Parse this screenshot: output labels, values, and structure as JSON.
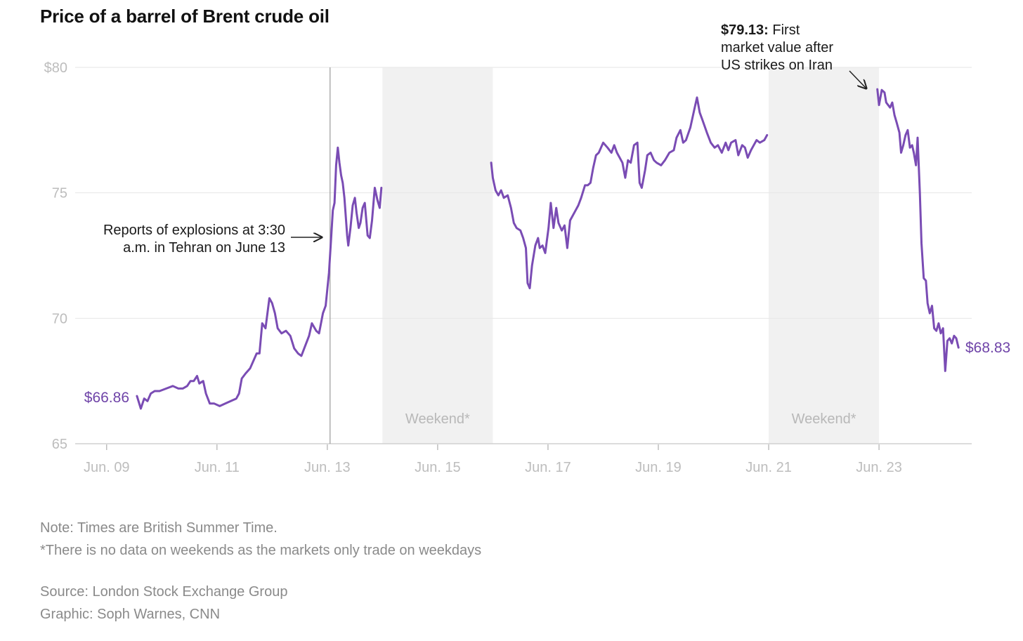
{
  "title": "Price of a barrel of Brent crude oil",
  "chart_data": {
    "type": "line",
    "title": "Price of a barrel of Brent crude oil",
    "xlabel": "",
    "ylabel": "",
    "ylim": [
      65,
      80
    ],
    "yticks": [
      "$80",
      "75",
      "70",
      "65"
    ],
    "ytick_values": [
      80,
      75,
      70,
      65
    ],
    "xticks": [
      "Jun. 09",
      "Jun. 11",
      "Jun. 13",
      "Jun. 15",
      "Jun. 17",
      "Jun. 19",
      "Jun. 21",
      "Jun. 23"
    ],
    "xtick_values": [
      9,
      11,
      13,
      15,
      17,
      19,
      21,
      23
    ],
    "xlim": [
      8.43,
      24.68
    ],
    "grid": true,
    "line_color": "#7a4cb4",
    "weekend_color": "#f1f1f1",
    "weekends": [
      {
        "from": 14.0,
        "to": 16.0,
        "label": "Weekend*"
      },
      {
        "from": 21.0,
        "to": 23.0,
        "label": "Weekend*"
      }
    ],
    "event_marker": {
      "x": 13.05
    },
    "series": [
      {
        "segments": [
          [
            [
              9.55,
              66.9
            ],
            [
              9.62,
              66.4
            ],
            [
              9.68,
              66.8
            ],
            [
              9.74,
              66.7
            ],
            [
              9.8,
              67.0
            ],
            [
              9.87,
              67.1
            ],
            [
              9.96,
              67.1
            ],
            [
              10.08,
              67.2
            ],
            [
              10.2,
              67.3
            ],
            [
              10.3,
              67.2
            ],
            [
              10.38,
              67.2
            ],
            [
              10.46,
              67.3
            ],
            [
              10.52,
              67.5
            ],
            [
              10.58,
              67.5
            ],
            [
              10.64,
              67.7
            ],
            [
              10.68,
              67.4
            ],
            [
              10.75,
              67.5
            ],
            [
              10.8,
              67.0
            ],
            [
              10.87,
              66.6
            ],
            [
              10.95,
              66.6
            ],
            [
              11.05,
              66.5
            ],
            [
              11.15,
              66.6
            ],
            [
              11.25,
              66.7
            ],
            [
              11.35,
              66.8
            ],
            [
              11.4,
              67.0
            ],
            [
              11.45,
              67.6
            ],
            [
              11.52,
              67.8
            ],
            [
              11.6,
              68.0
            ],
            [
              11.66,
              68.3
            ],
            [
              11.72,
              68.6
            ],
            [
              11.77,
              68.6
            ],
            [
              11.82,
              69.8
            ],
            [
              11.88,
              69.6
            ],
            [
              11.95,
              70.8
            ],
            [
              12.0,
              70.6
            ],
            [
              12.05,
              70.2
            ],
            [
              12.1,
              69.6
            ],
            [
              12.17,
              69.4
            ],
            [
              12.25,
              69.5
            ],
            [
              12.33,
              69.3
            ],
            [
              12.4,
              68.8
            ],
            [
              12.47,
              68.6
            ],
            [
              12.53,
              68.5
            ],
            [
              12.6,
              68.9
            ],
            [
              12.67,
              69.3
            ],
            [
              12.72,
              69.8
            ],
            [
              12.8,
              69.5
            ],
            [
              12.85,
              69.4
            ],
            [
              12.92,
              70.2
            ],
            [
              12.97,
              70.5
            ],
            [
              13.03,
              71.8
            ],
            [
              13.07,
              73.2
            ],
            [
              13.1,
              74.3
            ],
            [
              13.13,
              74.6
            ],
            [
              13.16,
              76.1
            ],
            [
              13.19,
              76.8
            ],
            [
              13.22,
              76.2
            ],
            [
              13.25,
              75.7
            ],
            [
              13.28,
              75.4
            ],
            [
              13.31,
              74.8
            ],
            [
              13.36,
              73.3
            ],
            [
              13.38,
              72.9
            ],
            [
              13.42,
              73.6
            ],
            [
              13.46,
              74.5
            ],
            [
              13.5,
              74.8
            ],
            [
              13.53,
              74.2
            ],
            [
              13.57,
              73.6
            ],
            [
              13.6,
              73.8
            ],
            [
              13.64,
              74.4
            ],
            [
              13.68,
              74.6
            ],
            [
              13.73,
              73.3
            ],
            [
              13.77,
              73.2
            ],
            [
              13.81,
              73.9
            ],
            [
              13.86,
              75.2
            ],
            [
              13.91,
              74.7
            ],
            [
              13.95,
              74.4
            ],
            [
              13.98,
              75.2
            ]
          ],
          [
            [
              15.97,
              76.2
            ],
            [
              16.0,
              75.6
            ],
            [
              16.05,
              75.1
            ],
            [
              16.1,
              74.9
            ],
            [
              16.15,
              75.1
            ],
            [
              16.2,
              74.8
            ],
            [
              16.27,
              74.9
            ],
            [
              16.33,
              74.4
            ],
            [
              16.38,
              73.8
            ],
            [
              16.43,
              73.6
            ],
            [
              16.5,
              73.5
            ],
            [
              16.55,
              73.2
            ],
            [
              16.6,
              72.8
            ],
            [
              16.63,
              71.4
            ],
            [
              16.67,
              71.2
            ],
            [
              16.71,
              72.1
            ],
            [
              16.77,
              72.9
            ],
            [
              16.82,
              73.2
            ],
            [
              16.85,
              72.8
            ],
            [
              16.9,
              72.9
            ],
            [
              16.95,
              72.6
            ],
            [
              17.01,
              73.6
            ],
            [
              17.05,
              74.6
            ],
            [
              17.1,
              73.6
            ],
            [
              17.15,
              74.4
            ],
            [
              17.19,
              73.8
            ],
            [
              17.25,
              73.5
            ],
            [
              17.3,
              73.7
            ],
            [
              17.35,
              72.8
            ],
            [
              17.4,
              73.9
            ],
            [
              17.5,
              74.3
            ],
            [
              17.55,
              74.5
            ],
            [
              17.6,
              74.8
            ],
            [
              17.67,
              75.3
            ],
            [
              17.72,
              75.3
            ],
            [
              17.77,
              75.4
            ],
            [
              17.82,
              76.0
            ],
            [
              17.87,
              76.5
            ],
            [
              17.92,
              76.6
            ],
            [
              18.0,
              77.0
            ],
            [
              18.08,
              76.8
            ],
            [
              18.15,
              76.6
            ],
            [
              18.2,
              76.9
            ],
            [
              18.25,
              76.6
            ],
            [
              18.3,
              76.4
            ],
            [
              18.35,
              76.2
            ],
            [
              18.4,
              75.6
            ],
            [
              18.45,
              76.3
            ],
            [
              18.5,
              76.2
            ],
            [
              18.56,
              76.9
            ],
            [
              18.62,
              77.0
            ],
            [
              18.66,
              75.4
            ],
            [
              18.7,
              75.2
            ],
            [
              18.76,
              75.9
            ],
            [
              18.8,
              76.5
            ],
            [
              18.86,
              76.6
            ],
            [
              18.92,
              76.3
            ],
            [
              18.97,
              76.2
            ],
            [
              19.05,
              76.1
            ],
            [
              19.12,
              76.3
            ],
            [
              19.2,
              76.6
            ],
            [
              19.28,
              76.7
            ],
            [
              19.33,
              77.2
            ],
            [
              19.4,
              77.5
            ],
            [
              19.45,
              77.0
            ],
            [
              19.5,
              77.1
            ],
            [
              19.58,
              77.6
            ],
            [
              19.65,
              78.3
            ],
            [
              19.7,
              78.8
            ],
            [
              19.75,
              78.2
            ],
            [
              19.8,
              77.9
            ],
            [
              19.88,
              77.4
            ],
            [
              19.95,
              77.0
            ],
            [
              20.02,
              76.8
            ],
            [
              20.08,
              76.9
            ],
            [
              20.15,
              76.6
            ],
            [
              20.22,
              77.0
            ],
            [
              20.27,
              76.7
            ],
            [
              20.32,
              77.0
            ],
            [
              20.4,
              77.1
            ],
            [
              20.45,
              76.5
            ],
            [
              20.52,
              76.9
            ],
            [
              20.57,
              76.8
            ],
            [
              20.62,
              76.4
            ],
            [
              20.68,
              76.7
            ],
            [
              20.73,
              76.9
            ],
            [
              20.78,
              77.1
            ],
            [
              20.84,
              77.0
            ],
            [
              20.92,
              77.1
            ],
            [
              20.97,
              77.3
            ]
          ],
          [
            [
              22.97,
              79.13
            ],
            [
              23.0,
              78.5
            ],
            [
              23.05,
              79.1
            ],
            [
              23.1,
              79.0
            ],
            [
              23.13,
              78.6
            ],
            [
              23.2,
              78.4
            ],
            [
              23.24,
              78.6
            ],
            [
              23.28,
              78.1
            ],
            [
              23.32,
              77.8
            ],
            [
              23.37,
              77.4
            ],
            [
              23.4,
              76.6
            ],
            [
              23.44,
              76.9
            ],
            [
              23.48,
              77.3
            ],
            [
              23.52,
              77.5
            ],
            [
              23.56,
              76.8
            ],
            [
              23.6,
              76.9
            ],
            [
              23.63,
              76.6
            ],
            [
              23.67,
              76.1
            ],
            [
              23.7,
              77.2
            ],
            [
              23.74,
              75.0
            ],
            [
              23.77,
              73.0
            ],
            [
              23.81,
              71.6
            ],
            [
              23.85,
              71.5
            ],
            [
              23.88,
              70.6
            ],
            [
              23.92,
              70.2
            ],
            [
              23.96,
              70.5
            ],
            [
              24.0,
              69.6
            ],
            [
              24.04,
              69.5
            ],
            [
              24.08,
              69.8
            ],
            [
              24.12,
              69.4
            ],
            [
              24.16,
              69.6
            ],
            [
              24.2,
              67.9
            ],
            [
              24.24,
              69.1
            ],
            [
              24.28,
              69.2
            ],
            [
              24.32,
              69.0
            ],
            [
              24.36,
              69.3
            ],
            [
              24.4,
              69.2
            ],
            [
              24.44,
              68.83
            ]
          ]
        ]
      }
    ],
    "start_label": "$66.86",
    "end_label": "$68.83",
    "annotations": [
      {
        "lines": [
          "Reports of explosions at 3:30",
          "a.m. in Tehran on June 13"
        ]
      },
      {
        "bold": "$79.13:",
        "lines": [
          " First",
          "market value after",
          "US strikes on Iran"
        ]
      }
    ]
  },
  "footnotes": {
    "note": "Note: Times are British Summer Time.",
    "weekend_note": "*There is no data on weekends as the markets only trade on weekdays",
    "source": "Source: London Stock Exchange Group",
    "graphic": "Graphic: Soph Warnes, CNN"
  }
}
